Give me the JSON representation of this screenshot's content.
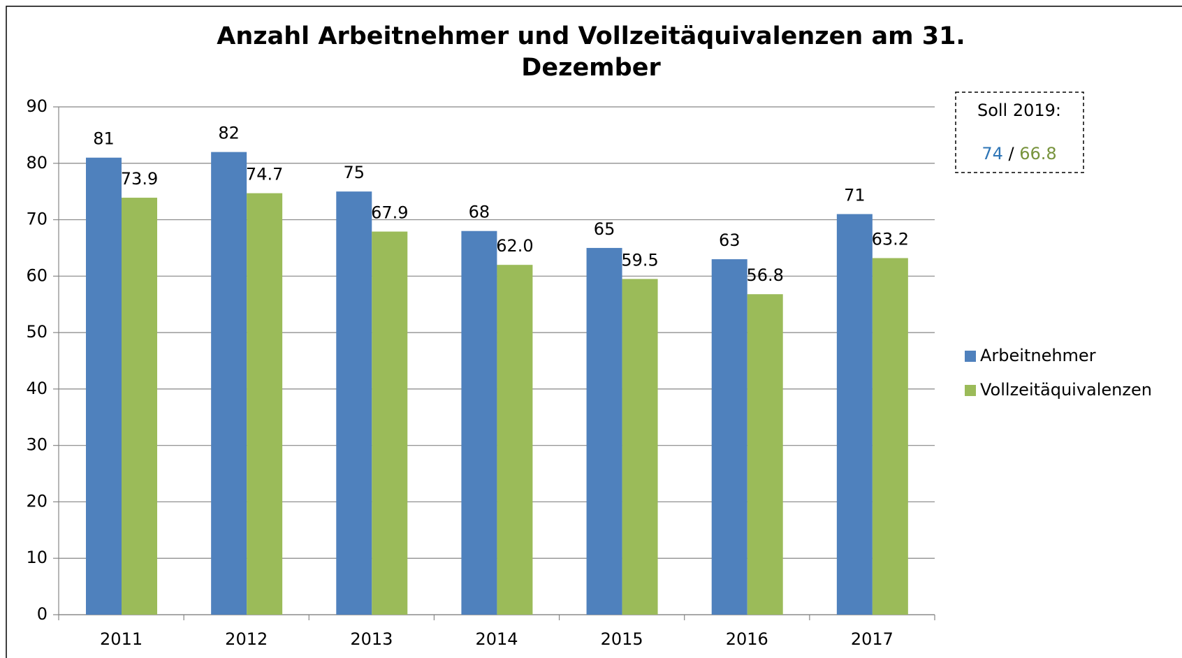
{
  "chart_data": {
    "type": "bar",
    "title": "Anzahl Arbeitnehmer und Vollzeitäquivalenzen am 31. Dezember",
    "categories": [
      "2011",
      "2012",
      "2013",
      "2014",
      "2015",
      "2016",
      "2017"
    ],
    "series": [
      {
        "name": "Arbeitnehmer",
        "color": "#4f81bd",
        "values": [
          81,
          82,
          75,
          68,
          65,
          63,
          71
        ]
      },
      {
        "name": "Vollzeitäquivalenzen",
        "color": "#9bbb59",
        "values": [
          73.9,
          74.7,
          67.9,
          62.0,
          59.5,
          56.8,
          63.2
        ],
        "value_labels": [
          "73.9",
          "74.7",
          "67.9",
          "62.0",
          "59.5",
          "56.8",
          "63.2"
        ]
      }
    ],
    "ylim": [
      0,
      90
    ],
    "yticks": [
      0,
      10,
      20,
      30,
      40,
      50,
      60,
      70,
      80,
      90
    ],
    "grid": true,
    "legend": "right",
    "annotation": {
      "label": "Soll 2019:",
      "values": [
        74,
        66.8
      ],
      "separator": "/",
      "colors": [
        "#2e75b6",
        "#77933c"
      ]
    }
  }
}
